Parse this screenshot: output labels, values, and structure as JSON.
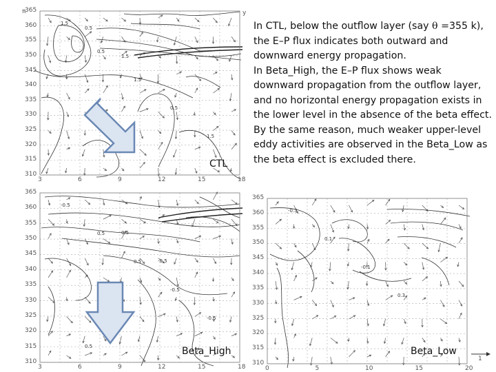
{
  "panels": {
    "ctl": {
      "label": "CTL",
      "y_ticks": [
        "365",
        "360",
        "355",
        "350",
        "345",
        "340",
        "335",
        "330",
        "325",
        "320",
        "315",
        "310"
      ],
      "x_ticks": [
        "3",
        "6",
        "9",
        "12",
        "15",
        "18"
      ],
      "axis_corner_top": "π",
      "axis_corner_right": "y",
      "contour_labels": [
        "1.5",
        "0.5",
        "1.5",
        "0.5",
        "1.5",
        "0.5",
        "1.5"
      ]
    },
    "beta_high": {
      "label": "Beta_High",
      "y_ticks": [
        "365",
        "360",
        "355",
        "350",
        "345",
        "340",
        "335",
        "330",
        "325",
        "320",
        "315",
        "310"
      ],
      "x_ticks": [
        "3",
        "6",
        "9",
        "12",
        "15",
        "18"
      ],
      "contour_labels": [
        "-0.5",
        "0.5",
        "0.5",
        "-0.5",
        "-0.5",
        "0.5",
        "0.5",
        "-0.5"
      ]
    },
    "beta_low": {
      "label": "Beta_Low",
      "y_ticks": [
        "365",
        "360",
        "355",
        "350",
        "345",
        "340",
        "335",
        "330",
        "325",
        "320",
        "315",
        "310"
      ],
      "x_ticks": [
        "0",
        "5",
        "10",
        "15",
        "20"
      ],
      "contour_labels": [
        "-0.3",
        "0.1",
        "-0.1",
        "0.3"
      ],
      "ref_vector_label": "1"
    }
  },
  "text": {
    "p1_a": "In CTL, below the outflow layer (say ",
    "p1_theta": "θ",
    "p1_b": " =355 k), the E–P flux indicates both outward and downward energy propagation.",
    "p2": "In Beta_High, the E–P flux shows weak downward propagation from the outflow layer, and no horizontal energy propagation exists in the lower level in the absence of the beta effect.",
    "p3": "By the same reason, much weaker upper-level eddy activities are observed in the Beta_Low as the beta effect is excluded there."
  },
  "colors": {
    "arrow_fill": "#dbe4f1",
    "arrow_stroke": "#6a88b4",
    "grid": "#9a9a9a",
    "contour": "#333333"
  }
}
